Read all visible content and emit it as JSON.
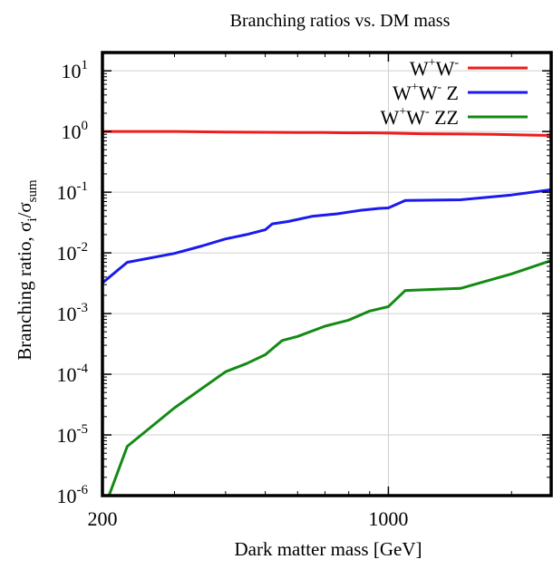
{
  "chart_data": {
    "type": "line",
    "title": "Branching ratios vs. DM mass",
    "xlabel": "Dark matter mass [GeV]",
    "ylabel": {
      "prefix": "Branching ratio, ",
      "num": "σ",
      "num_sub": "i",
      "slash": "/",
      "den": "σ",
      "den_sub": "sum"
    },
    "x_scale": "log",
    "y_scale": "log",
    "xlim": [
      200,
      2500
    ],
    "ylim": [
      1e-06,
      20
    ],
    "x_ticks": [
      {
        "value": 200,
        "label": "200"
      },
      {
        "value": 1000,
        "label": "1000"
      }
    ],
    "y_ticks": [
      {
        "value": 10,
        "base": "10",
        "exp": "1"
      },
      {
        "value": 1,
        "base": "10",
        "exp": "0"
      },
      {
        "value": 0.1,
        "base": "10",
        "exp": "-1"
      },
      {
        "value": 0.01,
        "base": "10",
        "exp": "-2"
      },
      {
        "value": 0.001,
        "base": "10",
        "exp": "-3"
      },
      {
        "value": 0.0001,
        "base": "10",
        "exp": "-4"
      },
      {
        "value": 1e-05,
        "base": "10",
        "exp": "-5"
      },
      {
        "value": 1e-06,
        "base": "10",
        "exp": "-6"
      }
    ],
    "grid": true,
    "legend_position": "top-right",
    "series": [
      {
        "name": "W+W-",
        "legend": [
          {
            "t": "W"
          },
          {
            "t": "+",
            "s": "sup"
          },
          {
            "t": "W"
          },
          {
            "t": "-",
            "s": "sup"
          }
        ],
        "color": "#ee1c1c",
        "x": [
          200,
          230,
          300,
          400,
          500,
          600,
          700,
          800,
          900,
          1000,
          1200,
          1500,
          1800,
          2100,
          2500
        ],
        "y": [
          1.0,
          1.0,
          1.0,
          0.98,
          0.97,
          0.96,
          0.96,
          0.95,
          0.95,
          0.94,
          0.92,
          0.91,
          0.9,
          0.88,
          0.86
        ]
      },
      {
        "name": "W+W- Z",
        "legend": [
          {
            "t": "W"
          },
          {
            "t": "+",
            "s": "sup"
          },
          {
            "t": "W"
          },
          {
            "t": "-",
            "s": "sup"
          },
          {
            "t": " Z"
          }
        ],
        "color": "#1a1aee",
        "x": [
          200,
          230,
          300,
          350,
          400,
          450,
          500,
          520,
          570,
          650,
          750,
          850,
          950,
          1000,
          1100,
          1500,
          2000,
          2500
        ],
        "y": [
          0.0032,
          0.007,
          0.0098,
          0.013,
          0.017,
          0.02,
          0.024,
          0.03,
          0.033,
          0.04,
          0.044,
          0.05,
          0.054,
          0.055,
          0.073,
          0.075,
          0.09,
          0.11
        ]
      },
      {
        "name": "W+W- ZZ",
        "legend": [
          {
            "t": "W"
          },
          {
            "t": "+",
            "s": "sup"
          },
          {
            "t": "W"
          },
          {
            "t": "-",
            "s": "sup"
          },
          {
            "t": " ZZ"
          }
        ],
        "color": "#138a13",
        "x": [
          205,
          230,
          300,
          400,
          450,
          500,
          550,
          600,
          700,
          800,
          900,
          1000,
          1100,
          1500,
          2000,
          2500
        ],
        "y": [
          8e-07,
          6.5e-06,
          2.8e-05,
          0.00011,
          0.00015,
          0.00021,
          0.00036,
          0.00042,
          0.00062,
          0.00078,
          0.0011,
          0.0013,
          0.0024,
          0.0026,
          0.0045,
          0.0075
        ]
      }
    ]
  }
}
